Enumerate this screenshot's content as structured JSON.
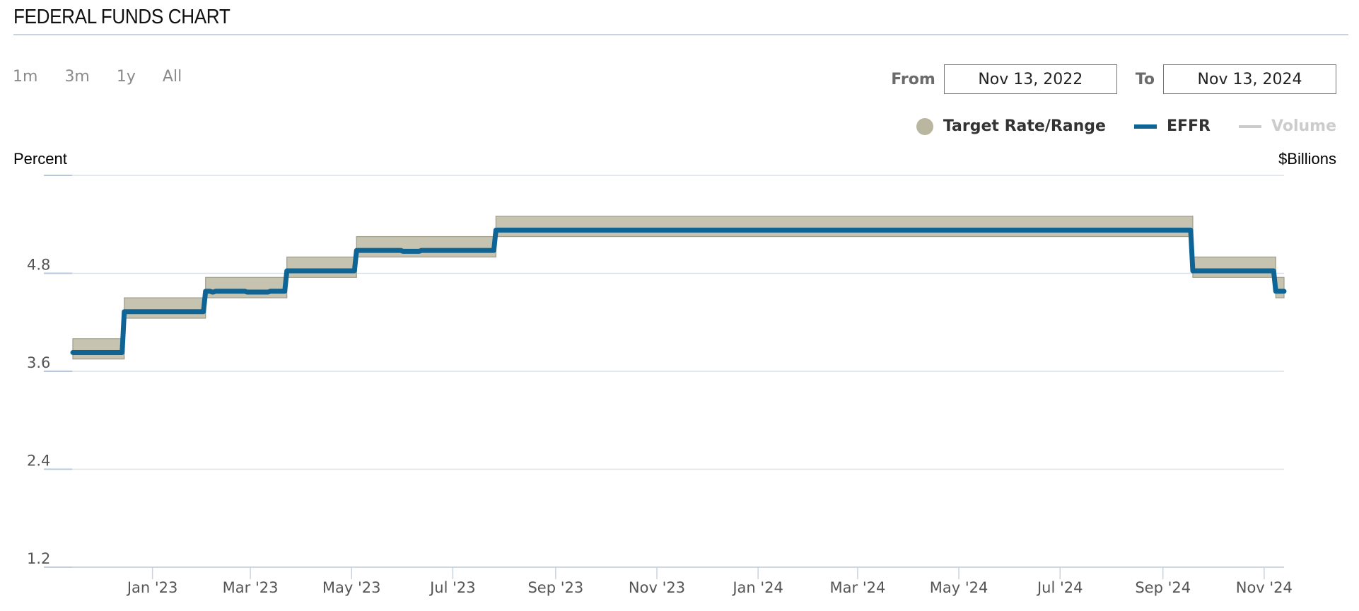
{
  "header": {
    "title": "FEDERAL FUNDS CHART"
  },
  "range_buttons": [
    "1m",
    "3m",
    "1y",
    "All"
  ],
  "date_range": {
    "from_label": "From",
    "from_value": "Nov 13, 2022",
    "to_label": "To",
    "to_value": "Nov 13, 2024"
  },
  "legend": [
    {
      "label": "Target Rate/Range",
      "color": "#b9b79f",
      "state": "on"
    },
    {
      "label": "EFFR",
      "color": "#0f6496",
      "state": "on"
    },
    {
      "label": "Volume",
      "color": "#cccccc",
      "state": "off"
    }
  ],
  "axes": {
    "left_title": "Percent",
    "right_title": "$Billions"
  },
  "chart_data": {
    "type": "line",
    "ylim": [
      1.2,
      6.0
    ],
    "xlim": [
      "2022-11-14",
      "2024-11-13"
    ],
    "y_ticks": [
      "1.2",
      "2.4",
      "3.6",
      "4.8"
    ],
    "x_ticks": [
      {
        "label": "Jan '23",
        "date": "2023-01-01"
      },
      {
        "label": "Mar '23",
        "date": "2023-03-01"
      },
      {
        "label": "May '23",
        "date": "2023-05-01"
      },
      {
        "label": "Jul '23",
        "date": "2023-07-01"
      },
      {
        "label": "Sep '23",
        "date": "2023-09-01"
      },
      {
        "label": "Nov '23",
        "date": "2023-11-01"
      },
      {
        "label": "Jan '24",
        "date": "2024-01-01"
      },
      {
        "label": "Mar '24",
        "date": "2024-03-01"
      },
      {
        "label": "May '24",
        "date": "2024-05-01"
      },
      {
        "label": "Jul '24",
        "date": "2024-07-01"
      },
      {
        "label": "Sep '24",
        "date": "2024-09-01"
      },
      {
        "label": "Nov '24",
        "date": "2024-11-01"
      }
    ],
    "series": [
      {
        "name": "Target Rate/Range",
        "type": "range",
        "segments": [
          {
            "start": "2022-11-14",
            "end": "2022-12-14",
            "low": 3.75,
            "high": 4.0
          },
          {
            "start": "2022-12-15",
            "end": "2023-02-01",
            "low": 4.25,
            "high": 4.5
          },
          {
            "start": "2023-02-02",
            "end": "2023-03-22",
            "low": 4.5,
            "high": 4.75
          },
          {
            "start": "2023-03-23",
            "end": "2023-05-03",
            "low": 4.75,
            "high": 5.0
          },
          {
            "start": "2023-05-04",
            "end": "2023-07-26",
            "low": 5.0,
            "high": 5.25
          },
          {
            "start": "2023-07-27",
            "end": "2024-09-18",
            "low": 5.25,
            "high": 5.5
          },
          {
            "start": "2024-09-19",
            "end": "2024-11-07",
            "low": 4.75,
            "high": 5.0
          },
          {
            "start": "2024-11-08",
            "end": "2024-11-13",
            "low": 4.5,
            "high": 4.75
          }
        ]
      },
      {
        "name": "EFFR",
        "type": "step",
        "points": [
          {
            "x": "2022-11-14",
            "y": 3.83
          },
          {
            "x": "2022-12-15",
            "y": 4.33
          },
          {
            "x": "2023-02-02",
            "y": 4.58
          },
          {
            "x": "2023-02-06",
            "y": 4.57
          },
          {
            "x": "2023-02-08",
            "y": 4.58
          },
          {
            "x": "2023-02-27",
            "y": 4.57
          },
          {
            "x": "2023-03-01",
            "y": 4.57
          },
          {
            "x": "2023-03-13",
            "y": 4.58
          },
          {
            "x": "2023-03-23",
            "y": 4.83
          },
          {
            "x": "2023-05-04",
            "y": 5.08
          },
          {
            "x": "2023-05-17",
            "y": 5.08
          },
          {
            "x": "2023-06-01",
            "y": 5.07
          },
          {
            "x": "2023-06-12",
            "y": 5.08
          },
          {
            "x": "2023-06-21",
            "y": 5.08
          },
          {
            "x": "2023-07-27",
            "y": 5.33
          },
          {
            "x": "2024-09-19",
            "y": 4.83
          },
          {
            "x": "2024-11-08",
            "y": 4.58
          },
          {
            "x": "2024-11-13",
            "y": 4.58
          }
        ]
      }
    ]
  }
}
